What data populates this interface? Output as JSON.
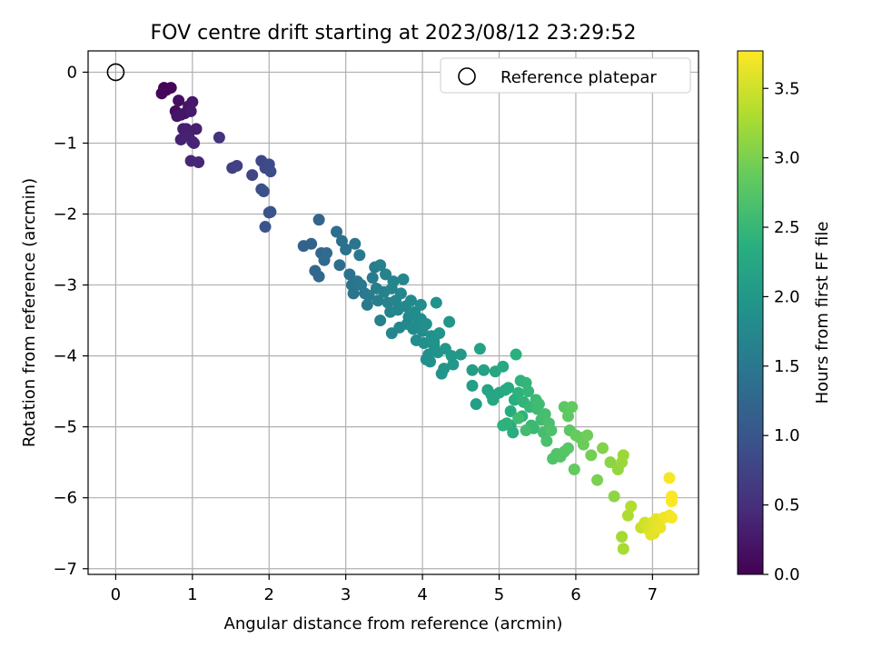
{
  "chart_data": {
    "type": "scatter",
    "title": "FOV centre drift starting at 2023/08/12 23:29:52",
    "xlabel": "Angular distance from reference (arcmin)",
    "ylabel": "Rotation from reference (arcmin)",
    "xlim": [
      -0.36,
      7.6
    ],
    "ylim": [
      -7.08,
      0.3
    ],
    "xticks": [
      "0",
      "1",
      "2",
      "3",
      "4",
      "5",
      "6",
      "7"
    ],
    "yticks": [
      "0",
      "−1",
      "−2",
      "−3",
      "−4",
      "−5",
      "−6",
      "−7"
    ],
    "grid": true,
    "colormap": "viridis",
    "legend": {
      "position": "top-right",
      "entries": [
        "Reference platepar"
      ]
    },
    "reference_point": {
      "x": 0,
      "y": 0
    },
    "colorbar": {
      "label": "Hours from first FF file",
      "range": [
        0,
        3.77
      ],
      "ticks": [
        "0.0",
        "0.5",
        "1.0",
        "1.5",
        "2.0",
        "2.5",
        "3.0",
        "3.5"
      ]
    },
    "points": [
      [
        0.62,
        -0.27,
        0.02
      ],
      [
        0.63,
        -0.22,
        0.03
      ],
      [
        0.66,
        -0.25,
        0.04
      ],
      [
        0.72,
        -0.22,
        0.05
      ],
      [
        0.6,
        -0.3,
        0.06
      ],
      [
        0.78,
        -0.55,
        0.12
      ],
      [
        0.82,
        -0.4,
        0.15
      ],
      [
        0.85,
        -0.6,
        0.18
      ],
      [
        0.9,
        -0.58,
        0.2
      ],
      [
        0.95,
        -0.48,
        0.22
      ],
      [
        1.0,
        -0.42,
        0.25
      ],
      [
        0.8,
        -0.62,
        0.23
      ],
      [
        0.98,
        -0.55,
        0.27
      ],
      [
        0.88,
        -0.8,
        0.3
      ],
      [
        0.92,
        -0.8,
        0.32
      ],
      [
        1.05,
        -0.8,
        0.33
      ],
      [
        0.85,
        -0.95,
        0.35
      ],
      [
        0.95,
        -0.9,
        0.36
      ],
      [
        1.0,
        -0.98,
        0.37
      ],
      [
        1.02,
        -1.0,
        0.38
      ],
      [
        0.98,
        -1.25,
        0.4
      ],
      [
        1.08,
        -1.27,
        0.42
      ],
      [
        1.35,
        -0.92,
        0.55
      ],
      [
        1.52,
        -1.35,
        0.7
      ],
      [
        1.58,
        -1.32,
        0.72
      ],
      [
        1.78,
        -1.45,
        0.78
      ],
      [
        1.9,
        -1.25,
        0.82
      ],
      [
        1.95,
        -1.35,
        0.85
      ],
      [
        2.0,
        -1.3,
        0.86
      ],
      [
        2.02,
        -1.4,
        0.88
      ],
      [
        1.9,
        -1.65,
        0.9
      ],
      [
        1.93,
        -1.68,
        0.92
      ],
      [
        2.0,
        -1.98,
        0.95
      ],
      [
        2.02,
        -1.97,
        0.96
      ],
      [
        1.95,
        -2.18,
        0.98
      ],
      [
        2.45,
        -2.45,
        1.18
      ],
      [
        2.55,
        -2.42,
        1.2
      ],
      [
        2.65,
        -2.08,
        1.22
      ],
      [
        2.6,
        -2.8,
        1.25
      ],
      [
        2.65,
        -2.88,
        1.27
      ],
      [
        2.68,
        -2.55,
        1.28
      ],
      [
        2.72,
        -2.65,
        1.3
      ],
      [
        2.75,
        -2.55,
        1.32
      ],
      [
        2.88,
        -2.25,
        1.35
      ],
      [
        2.92,
        -2.72,
        1.37
      ],
      [
        2.95,
        -2.38,
        1.38
      ],
      [
        3.0,
        -2.5,
        1.4
      ],
      [
        3.05,
        -2.85,
        1.42
      ],
      [
        3.08,
        -3.0,
        1.44
      ],
      [
        3.1,
        -3.12,
        1.45
      ],
      [
        3.12,
        -2.42,
        1.46
      ],
      [
        3.15,
        -2.95,
        1.48
      ],
      [
        3.2,
        -3.0,
        1.5
      ],
      [
        3.18,
        -2.58,
        1.51
      ],
      [
        3.25,
        -3.12,
        1.52
      ],
      [
        3.28,
        -3.28,
        1.54
      ],
      [
        3.3,
        -3.15,
        1.55
      ],
      [
        3.35,
        -2.9,
        1.57
      ],
      [
        3.38,
        -2.75,
        1.58
      ],
      [
        3.4,
        -3.05,
        1.6
      ],
      [
        3.42,
        -3.22,
        1.61
      ],
      [
        3.45,
        -2.72,
        1.62
      ],
      [
        3.45,
        -3.5,
        1.63
      ],
      [
        3.5,
        -3.1,
        1.64
      ],
      [
        3.52,
        -2.85,
        1.65
      ],
      [
        3.55,
        -3.25,
        1.66
      ],
      [
        3.58,
        -3.38,
        1.67
      ],
      [
        3.6,
        -3.05,
        1.68
      ],
      [
        3.62,
        -2.95,
        1.69
      ],
      [
        3.65,
        -3.22,
        1.7
      ],
      [
        3.68,
        -3.35,
        1.71
      ],
      [
        3.6,
        -3.68,
        1.72
      ],
      [
        3.72,
        -3.12,
        1.73
      ],
      [
        3.75,
        -2.92,
        1.74
      ],
      [
        3.78,
        -3.3,
        1.75
      ],
      [
        3.8,
        -3.55,
        1.76
      ],
      [
        3.82,
        -3.45,
        1.77
      ],
      [
        3.85,
        -3.22,
        1.78
      ],
      [
        3.88,
        -3.62,
        1.79
      ],
      [
        3.9,
        -3.38,
        1.8
      ],
      [
        3.92,
        -3.78,
        1.81
      ],
      [
        3.95,
        -3.52,
        1.82
      ],
      [
        3.98,
        -3.48,
        1.83
      ],
      [
        4.0,
        -3.65,
        1.84
      ],
      [
        4.02,
        -3.82,
        1.85
      ],
      [
        4.05,
        -3.55,
        1.86
      ],
      [
        4.08,
        -3.98,
        1.87
      ],
      [
        4.1,
        -4.08,
        1.88
      ],
      [
        4.12,
        -3.72,
        1.89
      ],
      [
        4.15,
        -3.85,
        1.9
      ],
      [
        4.18,
        -3.25,
        1.91
      ],
      [
        4.2,
        -3.95,
        1.92
      ],
      [
        4.22,
        -3.68,
        1.93
      ],
      [
        4.25,
        -4.25,
        1.94
      ],
      [
        4.28,
        -4.18,
        1.95
      ],
      [
        4.3,
        -3.9,
        1.96
      ],
      [
        4.35,
        -3.52,
        1.97
      ],
      [
        4.38,
        -4.0,
        1.98
      ],
      [
        4.4,
        -4.12,
        1.99
      ],
      [
        4.5,
        -3.98,
        2.0
      ],
      [
        3.98,
        -3.28,
        1.83
      ],
      [
        3.9,
        -3.6,
        1.8
      ],
      [
        4.05,
        -4.05,
        1.87
      ],
      [
        4.15,
        -3.8,
        1.9
      ],
      [
        3.7,
        -3.6,
        1.74
      ],
      [
        4.65,
        -4.2,
        2.08
      ],
      [
        4.65,
        -4.42,
        2.1
      ],
      [
        4.7,
        -4.68,
        2.12
      ],
      [
        4.75,
        -3.9,
        2.14
      ],
      [
        4.8,
        -4.2,
        2.15
      ],
      [
        4.85,
        -4.48,
        2.18
      ],
      [
        4.9,
        -4.55,
        2.2
      ],
      [
        4.92,
        -4.62,
        2.22
      ],
      [
        4.95,
        -4.22,
        2.24
      ],
      [
        5.0,
        -4.52,
        2.25
      ],
      [
        5.05,
        -4.15,
        2.27
      ],
      [
        5.08,
        -4.48,
        2.28
      ],
      [
        5.12,
        -4.45,
        2.3
      ],
      [
        5.15,
        -4.78,
        2.32
      ],
      [
        5.15,
        -4.98,
        2.33
      ],
      [
        5.18,
        -5.08,
        2.35
      ],
      [
        5.2,
        -4.62,
        2.36
      ],
      [
        5.22,
        -3.98,
        2.38
      ],
      [
        5.25,
        -4.52,
        2.4
      ],
      [
        5.28,
        -4.35,
        2.42
      ],
      [
        5.3,
        -4.85,
        2.43
      ],
      [
        5.32,
        -4.65,
        2.45
      ],
      [
        5.35,
        -4.38,
        2.46
      ],
      [
        5.38,
        -4.5,
        2.48
      ],
      [
        5.4,
        -4.72,
        2.5
      ],
      [
        5.42,
        -4.98,
        2.52
      ],
      [
        5.45,
        -5.02,
        2.53
      ],
      [
        5.48,
        -4.62,
        2.55
      ],
      [
        5.5,
        -4.75,
        2.56
      ],
      [
        5.52,
        -4.68,
        2.58
      ],
      [
        5.55,
        -4.9,
        2.6
      ],
      [
        5.58,
        -5.08,
        2.62
      ],
      [
        5.6,
        -4.82,
        2.63
      ],
      [
        5.62,
        -5.2,
        2.65
      ],
      [
        5.65,
        -4.95,
        2.66
      ],
      [
        5.68,
        -5.05,
        2.68
      ],
      [
        5.7,
        -5.45,
        2.7
      ],
      [
        5.75,
        -5.38,
        2.72
      ],
      [
        5.8,
        -5.42,
        2.74
      ],
      [
        5.85,
        -5.35,
        2.76
      ],
      [
        5.9,
        -5.3,
        2.78
      ],
      [
        5.85,
        -4.72,
        2.8
      ],
      [
        5.9,
        -4.85,
        2.82
      ],
      [
        5.95,
        -4.72,
        2.84
      ],
      [
        5.98,
        -5.6,
        2.85
      ],
      [
        5.92,
        -5.05,
        2.8
      ],
      [
        6.0,
        -5.12,
        2.87
      ],
      [
        6.05,
        -5.15,
        2.88
      ],
      [
        6.1,
        -5.25,
        2.9
      ],
      [
        6.15,
        -5.12,
        2.92
      ],
      [
        6.2,
        -5.4,
        2.95
      ],
      [
        5.35,
        -5.05,
        2.6
      ],
      [
        5.25,
        -4.88,
        2.58
      ],
      [
        5.1,
        -4.95,
        2.42
      ],
      [
        5.05,
        -4.98,
        2.4
      ],
      [
        6.28,
        -5.75,
        3.0
      ],
      [
        6.35,
        -5.3,
        3.05
      ],
      [
        6.45,
        -5.5,
        3.1
      ],
      [
        6.5,
        -5.98,
        3.12
      ],
      [
        6.55,
        -5.6,
        3.15
      ],
      [
        6.6,
        -5.5,
        3.18
      ],
      [
        6.62,
        -5.4,
        3.2
      ],
      [
        6.6,
        -6.55,
        3.25
      ],
      [
        6.62,
        -6.72,
        3.27
      ],
      [
        6.68,
        -6.25,
        3.3
      ],
      [
        6.72,
        -6.12,
        3.32
      ],
      [
        6.85,
        -6.42,
        3.45
      ],
      [
        6.9,
        -6.35,
        3.5
      ],
      [
        6.95,
        -6.45,
        3.55
      ],
      [
        7.0,
        -6.35,
        3.58
      ],
      [
        7.02,
        -6.5,
        3.6
      ],
      [
        7.05,
        -6.3,
        3.62
      ],
      [
        7.1,
        -6.42,
        3.65
      ],
      [
        7.15,
        -6.28,
        3.68
      ],
      [
        7.22,
        -6.25,
        3.7
      ],
      [
        7.25,
        -6.28,
        3.72
      ],
      [
        7.22,
        -5.72,
        3.73
      ],
      [
        7.25,
        -5.98,
        3.75
      ],
      [
        7.25,
        -6.05,
        3.76
      ],
      [
        6.98,
        -6.52,
        3.62
      ]
    ]
  }
}
